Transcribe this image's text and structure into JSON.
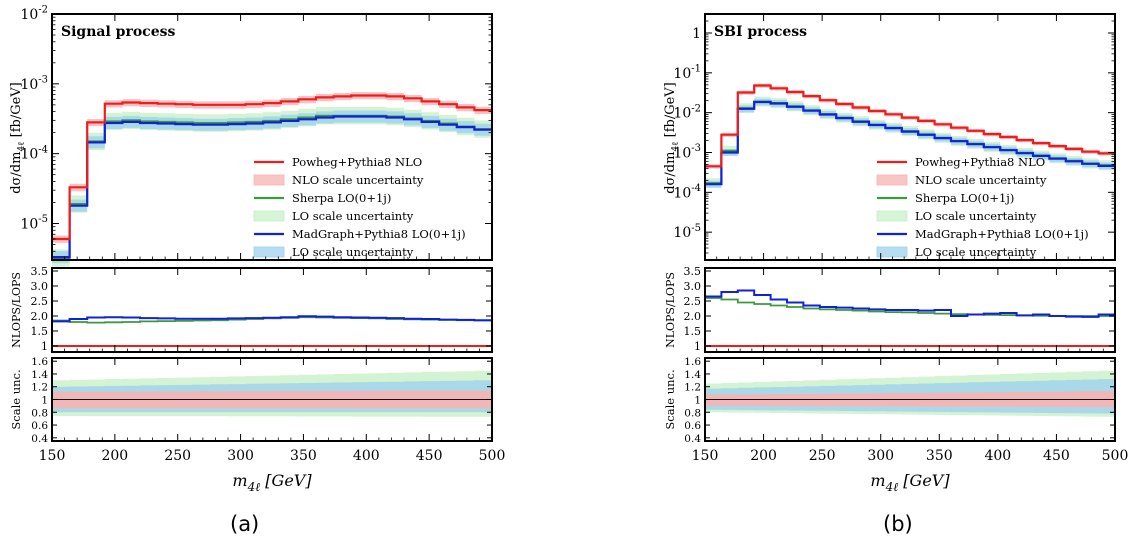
{
  "figure": {
    "caption_a": "(a)",
    "caption_b": "(b)",
    "colors": {
      "nlo": "#ee1c1c",
      "nlo_band": "#f7b3b3",
      "sherpa": "#3c9a3c",
      "sherpa_band": "#c8f0c8",
      "madgraph": "#1022d8",
      "madgraph_band": "#9fd2ee",
      "unity": "#111111"
    }
  },
  "chart_data": [
    {
      "type": "line",
      "panel": "a",
      "title": "Signal process",
      "xlabel": "m_{4ℓ} [GeV]",
      "xlim": [
        150,
        500
      ],
      "x_ticks": [
        "150",
        "200",
        "250",
        "300",
        "350",
        "400",
        "450",
        "500"
      ],
      "bin_edges": [
        150,
        164,
        178,
        192,
        206,
        220,
        234,
        248,
        262,
        276,
        290,
        304,
        318,
        332,
        346,
        360,
        374,
        388,
        402,
        416,
        430,
        444,
        458,
        472,
        486,
        500
      ],
      "main": {
        "ylabel": "dσ/dm_{4ℓ} [fb/GeV]",
        "yscale": "log",
        "ylim": [
          3e-06,
          0.01
        ],
        "y_ticks": [
          "10^{-5}",
          "10^{-4}",
          "10^{-3}",
          "10^{-2}"
        ],
        "legend_position": "center-right",
        "series": [
          {
            "name": "Powheg+Pythia8 NLO",
            "style": "line",
            "color": "#ee1c1c",
            "values": [
              6e-06,
              3.3e-05,
              0.00028,
              0.00052,
              0.00054,
              0.00053,
              0.00052,
              0.00051,
              0.0005,
              0.0005,
              0.0005,
              0.00051,
              0.00053,
              0.00056,
              0.0006,
              0.00064,
              0.00066,
              0.00068,
              0.00068,
              0.00066,
              0.00062,
              0.00056,
              0.00051,
              0.00046,
              0.00042
            ]
          },
          {
            "name": "NLO scale uncertainty",
            "style": "band",
            "color": "#f7b3b3"
          },
          {
            "name": "Sherpa LO(0+1j)",
            "style": "line",
            "color": "#3c9a3c",
            "values": [
              3.2e-06,
              1.9e-05,
              0.00015,
              0.00029,
              0.0003,
              0.00029,
              0.000285,
              0.00028,
              0.000275,
              0.000275,
              0.00028,
              0.000285,
              0.000295,
              0.00031,
              0.00033,
              0.00035,
              0.00035,
              0.00035,
              0.00035,
              0.00034,
              0.00032,
              0.000295,
              0.00027,
              0.000245,
              0.000225
            ]
          },
          {
            "name": "LO scale uncertainty",
            "style": "band",
            "color": "#c8f0c8"
          },
          {
            "name": "MadGraph+Pythia8 LO(0+1j)",
            "style": "line",
            "color": "#1022d8",
            "values": [
              3.3e-06,
              1.8e-05,
              0.000145,
              0.000275,
              0.000285,
              0.000275,
              0.00027,
              0.000265,
              0.00026,
              0.00026,
              0.000265,
              0.00027,
              0.00028,
              0.000295,
              0.00031,
              0.00033,
              0.00034,
              0.00034,
              0.00034,
              0.00033,
              0.00031,
              0.000285,
              0.00026,
              0.00024,
              0.00022
            ]
          },
          {
            "name": "LO scale uncertainty",
            "style": "band",
            "color": "#9fd2ee"
          }
        ]
      },
      "ratio": {
        "ylabel": "NLOPS/LOPS",
        "ylim": [
          0.8,
          3.6
        ],
        "y_ticks": [
          "1",
          "1.5",
          "2.0",
          "2.5",
          "3.0",
          "3.5"
        ],
        "series": [
          {
            "name": "Sherpa LO(0+1j)",
            "values": [
              1.85,
              1.8,
              1.78,
              1.79,
              1.8,
              1.82,
              1.83,
              1.84,
              1.85,
              1.86,
              1.88,
              1.9,
              1.92,
              1.94,
              1.96,
              1.95,
              1.94,
              1.93,
              1.92,
              1.9,
              1.89,
              1.88,
              1.87,
              1.86,
              1.85
            ]
          },
          {
            "name": "MadGraph+Pythia8 LO(0+1j)",
            "values": [
              1.82,
              1.9,
              1.95,
              1.96,
              1.95,
              1.93,
              1.92,
              1.91,
              1.91,
              1.91,
              1.92,
              1.93,
              1.94,
              1.96,
              1.99,
              1.98,
              1.96,
              1.95,
              1.94,
              1.93,
              1.91,
              1.9,
              1.88,
              1.87,
              1.86
            ]
          }
        ]
      },
      "scale": {
        "ylabel": "Scale unc.",
        "ylim": [
          0.35,
          1.65
        ],
        "y_ticks": [
          "0.4",
          "0.6",
          "0.8",
          "1",
          "1.2",
          "1.4",
          "1.6"
        ],
        "bands": [
          {
            "name": "Sherpa LO(0+1j) scale uncertainty",
            "low": [
              0.74,
              0.73
            ],
            "high": [
              1.3,
              1.45
            ]
          },
          {
            "name": "MadGraph+Pythia8 LO(0+1j) scale uncertainty",
            "low": [
              0.8,
              0.8
            ],
            "high": [
              1.2,
              1.3
            ]
          },
          {
            "name": "NLO scale uncertainty",
            "low": [
              0.86,
              0.86
            ],
            "high": [
              1.12,
              1.14
            ]
          }
        ]
      }
    },
    {
      "type": "line",
      "panel": "b",
      "title": "SBI process",
      "xlabel": "m_{4ℓ} [GeV]",
      "xlim": [
        150,
        500
      ],
      "x_ticks": [
        "150",
        "200",
        "250",
        "300",
        "350",
        "400",
        "450",
        "500"
      ],
      "bin_edges": [
        150,
        164,
        178,
        192,
        206,
        220,
        234,
        248,
        262,
        276,
        290,
        304,
        318,
        332,
        346,
        360,
        374,
        388,
        402,
        416,
        430,
        444,
        458,
        472,
        486,
        500
      ],
      "main": {
        "ylabel": "dσ/dm_{4ℓ} [fb/GeV]",
        "yscale": "log",
        "ylim": [
          2e-06,
          3
        ],
        "y_ticks": [
          "10^{-5}",
          "10^{-4}",
          "10^{-3}",
          "10^{-2}",
          "10^{-1}",
          "1"
        ],
        "legend_position": "center-right",
        "series": [
          {
            "name": "Powheg+Pythia8 NLO",
            "style": "line",
            "color": "#ee1c1c",
            "values": [
              0.00045,
              0.0028,
              0.032,
              0.048,
              0.041,
              0.033,
              0.026,
              0.0205,
              0.0165,
              0.0135,
              0.011,
              0.0091,
              0.0075,
              0.0062,
              0.0051,
              0.0042,
              0.0035,
              0.0029,
              0.00245,
              0.00205,
              0.00172,
              0.00145,
              0.00123,
              0.00105,
              0.00095
            ]
          },
          {
            "name": "NLO scale uncertainty",
            "style": "band",
            "color": "#f7b3b3"
          },
          {
            "name": "Sherpa LO(0+1j)",
            "style": "line",
            "color": "#3c9a3c",
            "values": [
              0.00017,
              0.0011,
              0.013,
              0.019,
              0.0175,
              0.0145,
              0.0115,
              0.0092,
              0.0075,
              0.0061,
              0.005,
              0.0042,
              0.00345,
              0.00285,
              0.00235,
              0.00195,
              0.00165,
              0.00138,
              0.00116,
              0.00098,
              0.00084,
              0.00072,
              0.00062,
              0.00053,
              0.00048
            ]
          },
          {
            "name": "LO scale uncertainty",
            "style": "band",
            "color": "#c8f0c8"
          },
          {
            "name": "MadGraph+Pythia8 LO(0+1j)",
            "style": "line",
            "color": "#1022d8",
            "values": [
              0.00016,
              0.001,
              0.0125,
              0.0185,
              0.017,
              0.014,
              0.0112,
              0.009,
              0.0073,
              0.0059,
              0.0049,
              0.0041,
              0.00335,
              0.00278,
              0.0023,
              0.00192,
              0.00162,
              0.00136,
              0.00114,
              0.00096,
              0.00082,
              0.0007,
              0.0006,
              0.00052,
              0.00046
            ]
          },
          {
            "name": "LO scale uncertainty",
            "style": "band",
            "color": "#9fd2ee"
          }
        ]
      },
      "ratio": {
        "ylabel": "NLOPS/LOPS",
        "ylim": [
          0.8,
          3.6
        ],
        "y_ticks": [
          "1",
          "1.5",
          "2.0",
          "2.5",
          "3.0",
          "3.5"
        ],
        "series": [
          {
            "name": "Sherpa LO(0+1j)",
            "values": [
              2.6,
              2.55,
              2.45,
              2.4,
              2.35,
              2.3,
              2.25,
              2.22,
              2.2,
              2.18,
              2.15,
              2.13,
              2.12,
              2.1,
              2.08,
              2.06,
              2.05,
              2.04,
              2.03,
              2.02,
              2.01,
              2.0,
              2.0,
              2.0,
              2.0
            ]
          },
          {
            "name": "MadGraph+Pythia8 LO(0+1j)",
            "values": [
              2.65,
              2.8,
              2.85,
              2.7,
              2.55,
              2.45,
              2.35,
              2.3,
              2.28,
              2.25,
              2.22,
              2.2,
              2.2,
              2.18,
              2.2,
              2.0,
              2.05,
              2.08,
              2.1,
              2.02,
              2.05,
              2.0,
              1.98,
              1.97,
              2.05
            ]
          }
        ]
      },
      "scale": {
        "ylabel": "Scale unc.",
        "ylim": [
          0.35,
          1.65
        ],
        "y_ticks": [
          "0.4",
          "0.6",
          "0.8",
          "1",
          "1.2",
          "1.4",
          "1.6"
        ],
        "bands": [
          {
            "name": "Sherpa LO(0+1j) scale uncertainty",
            "low": [
              0.8,
              0.73
            ],
            "high": [
              1.25,
              1.45
            ]
          },
          {
            "name": "MadGraph+Pythia8 LO(0+1j) scale uncertainty",
            "low": [
              0.84,
              0.78
            ],
            "high": [
              1.17,
              1.32
            ]
          },
          {
            "name": "NLO scale uncertainty",
            "low": [
              0.9,
              0.88
            ],
            "high": [
              1.08,
              1.13
            ]
          }
        ]
      }
    }
  ]
}
